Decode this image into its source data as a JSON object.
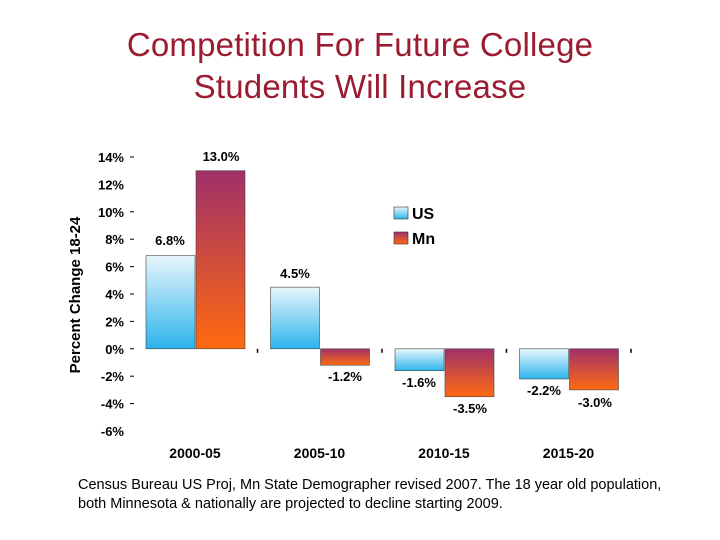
{
  "title": {
    "line1": "Competition For Future College",
    "line2": "Students Will Increase"
  },
  "chart_data": {
    "type": "bar",
    "title": "Competition For Future College Students Will Increase",
    "ylabel": "Percent Change 18-24",
    "xlabel": "",
    "ylim": [
      -6,
      14
    ],
    "yticks": [
      14,
      12,
      10,
      8,
      6,
      4,
      2,
      0,
      -2,
      -4,
      -6
    ],
    "ytick_labels": [
      "14%",
      "12%",
      "10%",
      "8%",
      "6%",
      "4%",
      "2%",
      "0%",
      "-2%",
      "-4%",
      "-6%"
    ],
    "categories": [
      "2000-05",
      "2005-10",
      "2010-15",
      "2015-20"
    ],
    "series": [
      {
        "name": "US",
        "values": [
          6.8,
          4.5,
          -1.6,
          -2.2
        ],
        "labels": [
          "6.8%",
          "4.5%",
          "-1.6%",
          "-2.2%"
        ],
        "color_top": "#e8f6fc",
        "color_bottom": "#2cb4ec"
      },
      {
        "name": "Mn",
        "values": [
          13.0,
          -1.2,
          -3.5,
          -3.0
        ],
        "labels": [
          "13.0%",
          "-1.2%",
          "-3.5%",
          "-3.0%"
        ],
        "color_top": "#a0306a",
        "color_bottom": "#ff6a10"
      }
    ],
    "legend": {
      "position": "right",
      "entries": [
        "US",
        "Mn"
      ]
    },
    "grid": false
  },
  "footnote": "Census Bureau US Proj, Mn State Demographer revised 2007.  The 18 year old population, both Minnesota & nationally are projected to decline starting 2009."
}
